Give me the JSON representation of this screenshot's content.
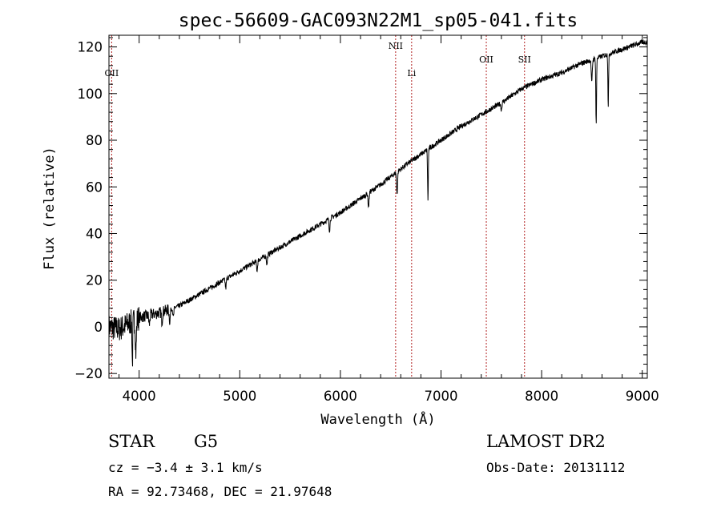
{
  "chart_data": {
    "type": "line",
    "title": "spec-56609-GAC093N22M1_sp05-041.fits",
    "xlabel": "Wavelength (Å)",
    "ylabel": "Flux (relative)",
    "xlim": [
      3700,
      9050
    ],
    "ylim": [
      -22,
      125
    ],
    "x_ticks": [
      4000,
      5000,
      6000,
      7000,
      8000,
      9000
    ],
    "x_tick_labels": [
      "4000",
      "5000",
      "6000",
      "7000",
      "8000",
      "9000"
    ],
    "y_ticks": [
      -20,
      0,
      20,
      40,
      60,
      80,
      100,
      120
    ],
    "y_tick_labels": [
      "−20",
      "0",
      "20",
      "40",
      "60",
      "80",
      "100",
      "120"
    ],
    "grid": false,
    "series": [
      {
        "continuum_points": [
          [
            3700,
            0
          ],
          [
            3800,
            -1
          ],
          [
            4000,
            4
          ],
          [
            4200,
            6
          ],
          [
            4400,
            9
          ],
          [
            4600,
            14
          ],
          [
            4800,
            19
          ],
          [
            5000,
            24
          ],
          [
            5200,
            29
          ],
          [
            5400,
            34
          ],
          [
            5600,
            39
          ],
          [
            5800,
            44
          ],
          [
            6000,
            49
          ],
          [
            6200,
            55
          ],
          [
            6400,
            61
          ],
          [
            6550,
            66
          ],
          [
            6700,
            71
          ],
          [
            6900,
            77
          ],
          [
            7000,
            80
          ],
          [
            7200,
            86
          ],
          [
            7400,
            91
          ],
          [
            7600,
            96
          ],
          [
            7800,
            102
          ],
          [
            8000,
            106
          ],
          [
            8200,
            109
          ],
          [
            8400,
            113
          ],
          [
            8600,
            116
          ],
          [
            8800,
            119
          ],
          [
            9000,
            122
          ]
        ],
        "absorption_features": [
          {
            "x": 3933,
            "depth": 18
          },
          {
            "x": 3968,
            "depth": 14
          },
          {
            "x": 4101,
            "depth": 4
          },
          {
            "x": 4227,
            "depth": 4
          },
          {
            "x": 4304,
            "depth": 6
          },
          {
            "x": 4340,
            "depth": 4
          },
          {
            "x": 4861,
            "depth": 4
          },
          {
            "x": 5172,
            "depth": 4
          },
          {
            "x": 5270,
            "depth": 4
          },
          {
            "x": 5892,
            "depth": 5
          },
          {
            "x": 6280,
            "depth": 6
          },
          {
            "x": 6563,
            "depth": 9
          },
          {
            "x": 6870,
            "depth": 22
          },
          {
            "x": 7600,
            "depth": 3
          },
          {
            "x": 8498,
            "depth": 10
          },
          {
            "x": 8542,
            "depth": 28
          },
          {
            "x": 8662,
            "depth": 22
          }
        ]
      }
    ],
    "annotations": [
      {
        "label": "OII",
        "x": 3727
      },
      {
        "label": "NII",
        "x": 6549
      },
      {
        "label": "Li",
        "x": 6708
      },
      {
        "label": "OII",
        "x": 7450
      },
      {
        "label": "SII",
        "x": 7830
      }
    ]
  },
  "info": {
    "object_class": "STAR",
    "subclass": "G5",
    "cz": "cz = −3.4 ± 3.1 km/s",
    "coords": "RA =  92.73468, DEC =  21.97648",
    "survey": "LAMOST DR2",
    "obs_date": "Obs-Date: 20131112"
  }
}
